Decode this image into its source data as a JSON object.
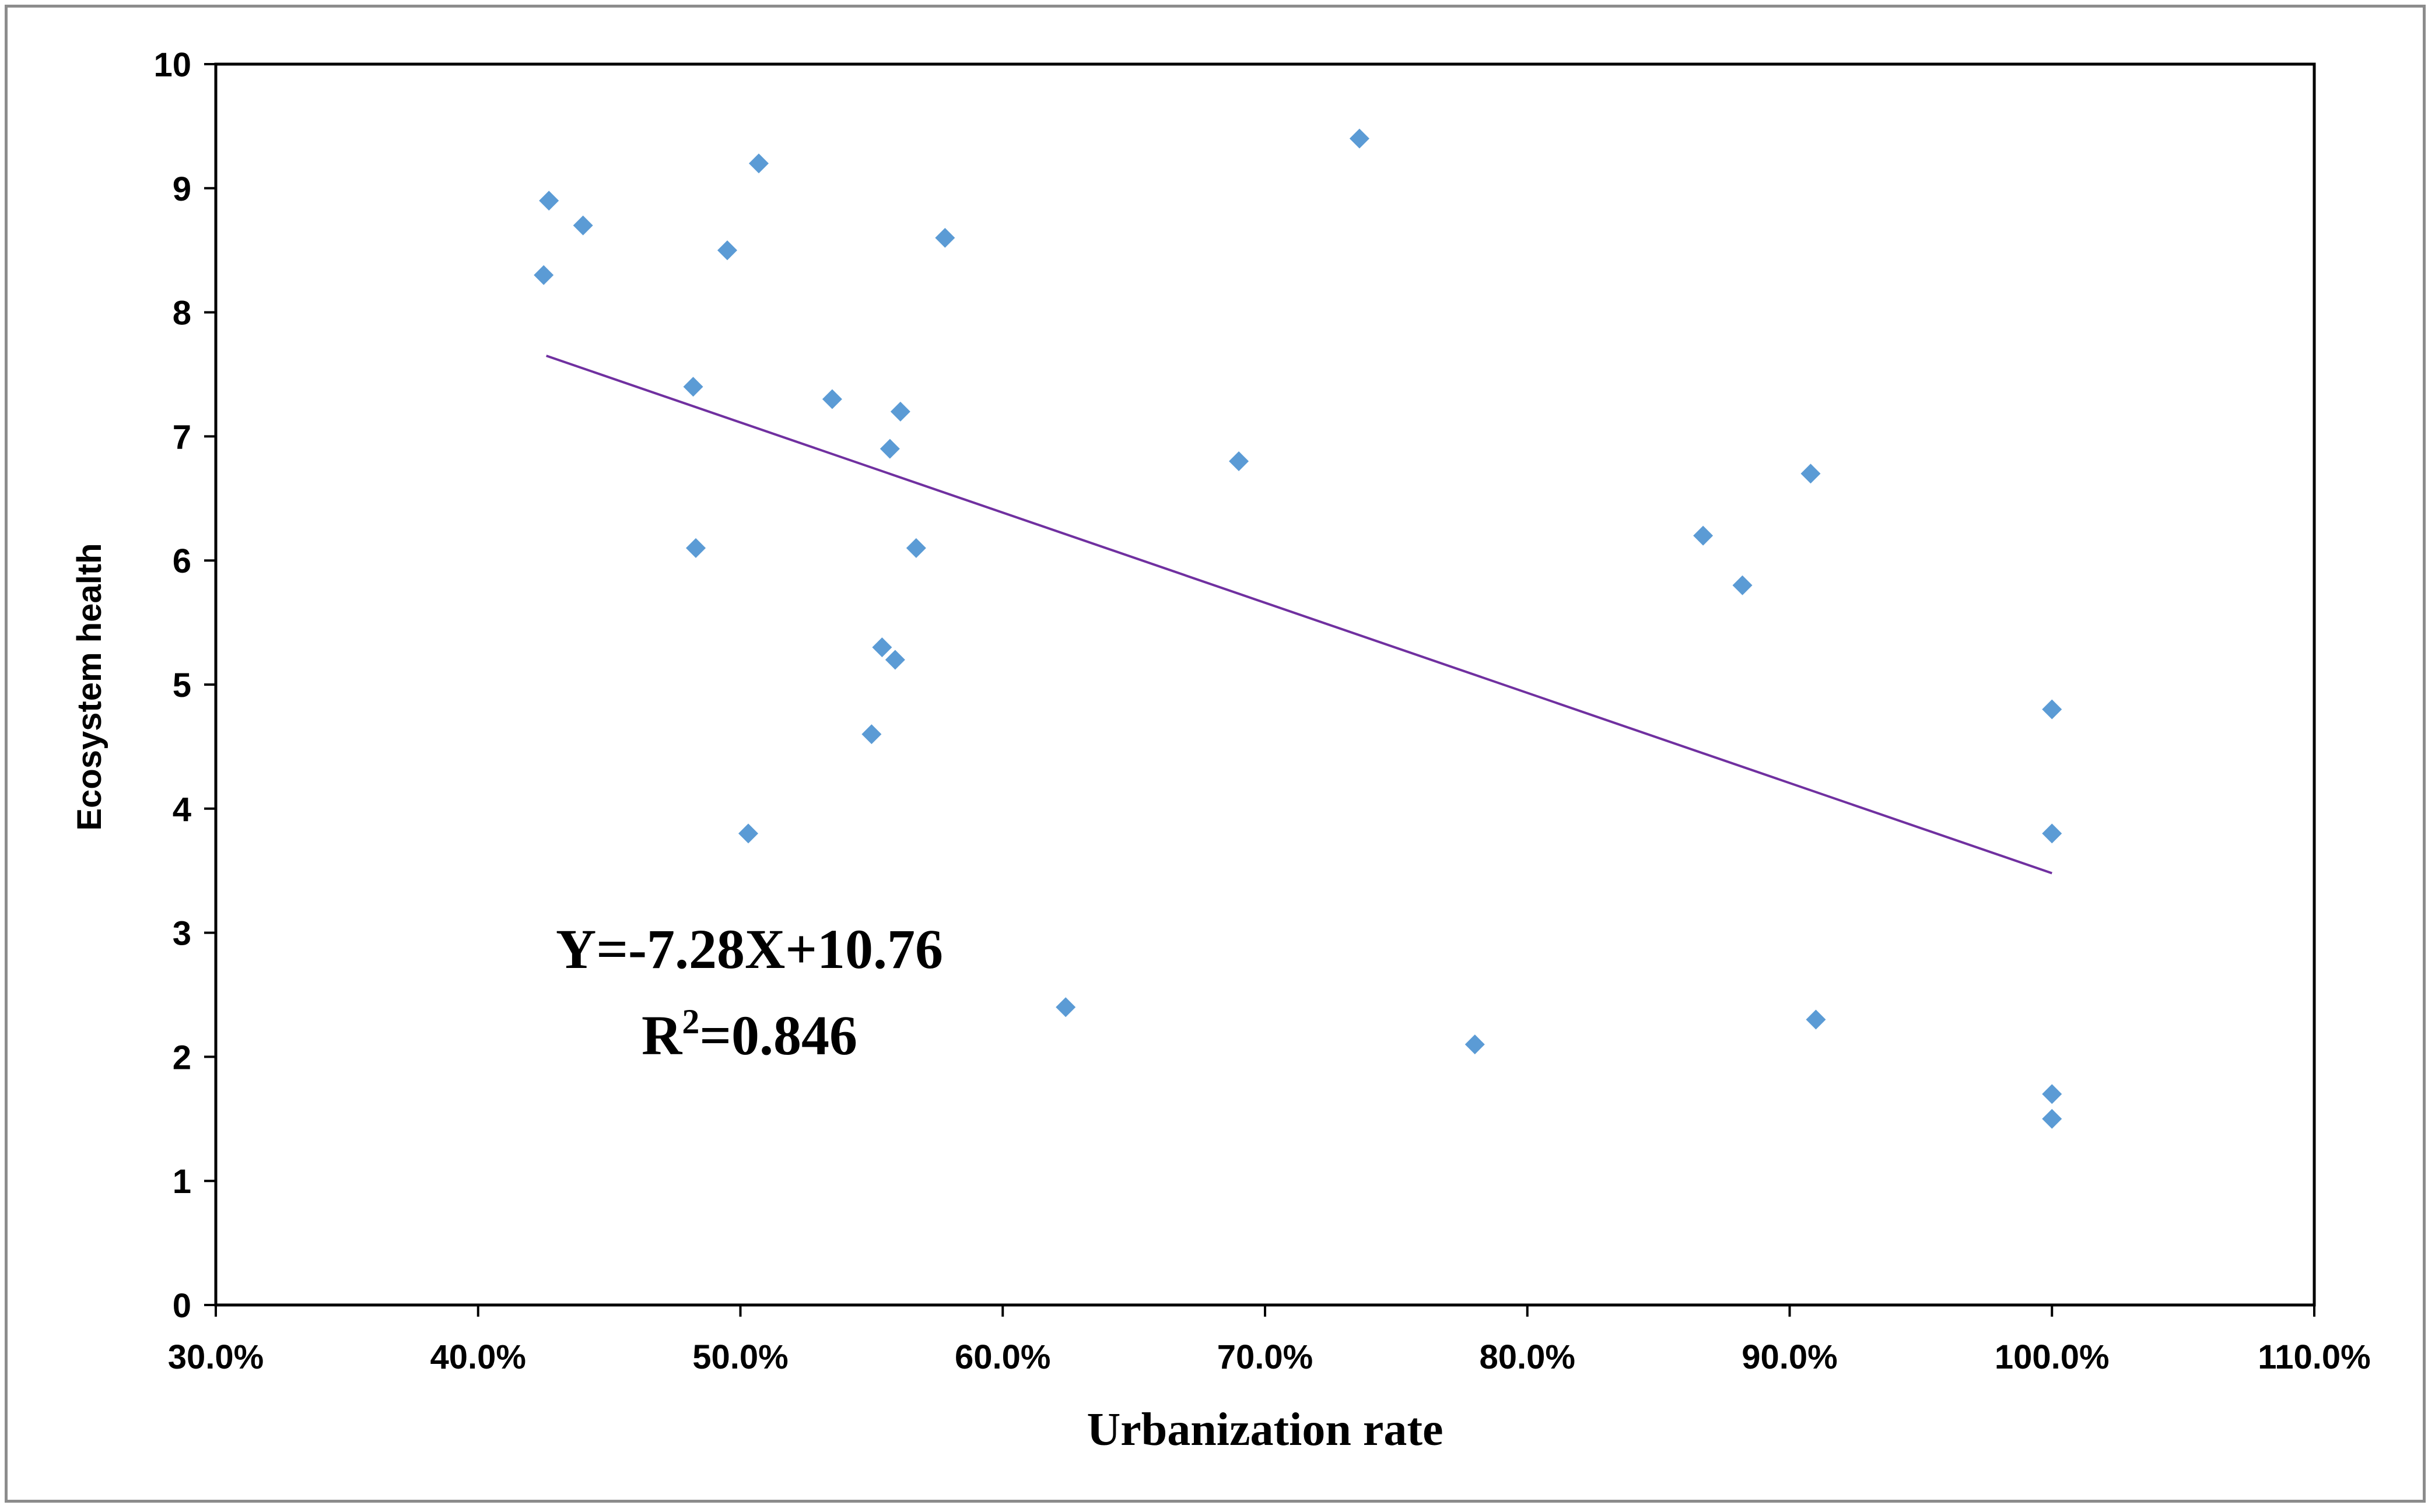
{
  "chart_data": {
    "type": "scatter",
    "title": "",
    "xlabel": "Urbanization rate",
    "ylabel": "Ecosystem health",
    "xlim": [
      0.3,
      1.1
    ],
    "ylim": [
      0,
      10
    ],
    "x_ticks": [
      0.3,
      0.4,
      0.5,
      0.6,
      0.7,
      0.8,
      0.9,
      1.0,
      1.1
    ],
    "x_tick_labels": [
      "30.0%",
      "40.0%",
      "50.0%",
      "60.0%",
      "70.0%",
      "80.0%",
      "90.0%",
      "100.0%",
      "110.0%"
    ],
    "y_ticks": [
      0,
      1,
      2,
      3,
      4,
      5,
      6,
      7,
      8,
      9,
      10
    ],
    "y_tick_labels": [
      "0",
      "1",
      "2",
      "3",
      "4",
      "5",
      "6",
      "7",
      "8",
      "9",
      "10"
    ],
    "grid": false,
    "legend": "none",
    "series": [
      {
        "name": "Ecosystem health",
        "marker": "diamond",
        "color": "#5b9bd5",
        "points": [
          {
            "x": 0.425,
            "y": 8.3
          },
          {
            "x": 0.427,
            "y": 8.9
          },
          {
            "x": 0.44,
            "y": 8.7
          },
          {
            "x": 0.482,
            "y": 7.4
          },
          {
            "x": 0.483,
            "y": 6.1
          },
          {
            "x": 0.495,
            "y": 8.5
          },
          {
            "x": 0.503,
            "y": 3.8
          },
          {
            "x": 0.507,
            "y": 9.2
          },
          {
            "x": 0.535,
            "y": 7.3
          },
          {
            "x": 0.55,
            "y": 4.6
          },
          {
            "x": 0.554,
            "y": 5.3
          },
          {
            "x": 0.557,
            "y": 6.9
          },
          {
            "x": 0.559,
            "y": 5.2
          },
          {
            "x": 0.561,
            "y": 7.2
          },
          {
            "x": 0.567,
            "y": 6.1
          },
          {
            "x": 0.578,
            "y": 8.6
          },
          {
            "x": 0.624,
            "y": 2.4
          },
          {
            "x": 0.69,
            "y": 6.8
          },
          {
            "x": 0.736,
            "y": 9.4
          },
          {
            "x": 0.78,
            "y": 2.1
          },
          {
            "x": 0.867,
            "y": 6.2
          },
          {
            "x": 0.882,
            "y": 5.8
          },
          {
            "x": 0.908,
            "y": 6.7
          },
          {
            "x": 0.91,
            "y": 2.3
          },
          {
            "x": 1.0,
            "y": 4.8
          },
          {
            "x": 1.0,
            "y": 3.8
          },
          {
            "x": 1.0,
            "y": 1.7
          },
          {
            "x": 1.0,
            "y": 1.5
          }
        ]
      }
    ],
    "trendline": {
      "color": "#7030a0",
      "x_start": 0.426,
      "x_end": 1.0,
      "y_start": 7.65,
      "y_end": 3.48
    },
    "annotations": [
      "Y=-7.28X+10.76",
      "R",
      "2",
      "=0.846"
    ]
  }
}
